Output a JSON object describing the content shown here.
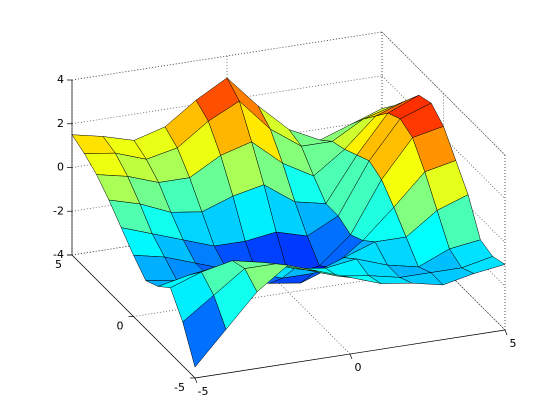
{
  "chart_data": {
    "type": "surface",
    "x": [
      -5,
      -4,
      -3,
      -2,
      -1,
      0,
      1,
      2,
      3,
      4,
      5
    ],
    "y": [
      -5,
      -4,
      -3,
      -2,
      -1,
      0,
      1,
      2,
      3,
      4,
      5
    ],
    "z": [
      [
        -3.5,
        -2.0,
        -0.5,
        0.5,
        0.0,
        -0.5,
        -1.0,
        -1.2,
        -1.5,
        -1.2,
        -1.0
      ],
      [
        -2.0,
        -1.0,
        0.0,
        0.0,
        -0.5,
        -1.0,
        -1.2,
        -1.5,
        -1.5,
        -1.5,
        -1.2
      ],
      [
        -1.0,
        -0.5,
        -0.2,
        -0.5,
        -1.0,
        -1.2,
        -1.0,
        -1.5,
        -1.8,
        -1.2,
        -1.0
      ],
      [
        -1.5,
        -1.2,
        -1.0,
        -1.5,
        -2.0,
        -2.0,
        -1.5,
        -1.0,
        -1.0,
        0.0,
        0.5
      ],
      [
        -1.8,
        -2.0,
        -2.0,
        -2.5,
        -2.8,
        -3.0,
        -2.5,
        -1.5,
        -0.2,
        1.2,
        1.5
      ],
      [
        -1.2,
        -1.5,
        -2.0,
        -2.5,
        -3.0,
        -3.2,
        -3.0,
        -1.8,
        0.5,
        2.2,
        2.5
      ],
      [
        -0.5,
        -1.0,
        -1.5,
        -2.0,
        -2.0,
        -1.8,
        -2.2,
        -1.5,
        0.8,
        2.5,
        3.0
      ],
      [
        0.2,
        -0.2,
        -0.8,
        -1.0,
        -0.5,
        -0.2,
        -1.2,
        -1.5,
        0.5,
        2.2,
        2.8
      ],
      [
        0.8,
        0.5,
        0.0,
        0.0,
        0.8,
        1.2,
        0.0,
        -0.8,
        0.2,
        1.5,
        2.0
      ],
      [
        1.2,
        1.0,
        0.5,
        0.8,
        1.8,
        2.5,
        1.0,
        0.0,
        0.0,
        0.8,
        1.2
      ],
      [
        1.5,
        1.2,
        0.8,
        1.2,
        2.2,
        3.0,
        1.5,
        0.2,
        -0.5,
        0.0,
        0.5
      ]
    ],
    "xlim": [
      -5,
      5
    ],
    "ylim": [
      -5,
      5
    ],
    "zlim": [
      -4,
      4
    ],
    "xticks": [
      -5,
      0,
      5
    ],
    "yticks": [
      -5,
      0,
      5
    ],
    "zticks": [
      -4,
      -2,
      0,
      2,
      4
    ],
    "colormap": "jet",
    "grid": true
  }
}
